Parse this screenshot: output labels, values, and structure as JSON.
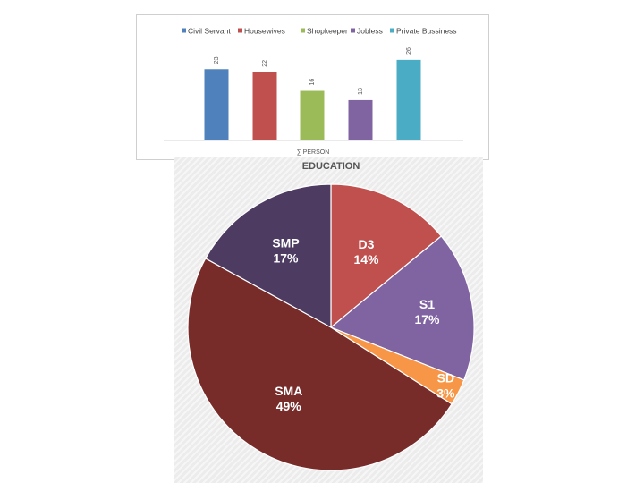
{
  "chart_data": [
    {
      "type": "bar",
      "categories": [
        "Civil Servant",
        "Housewives",
        "Shopkeeper",
        "Jobless",
        "Private Bussiness"
      ],
      "series": [
        {
          "name": "Civil Servant",
          "value": 23,
          "color": "#4f81bd"
        },
        {
          "name": "Housewives",
          "value": 22,
          "color": "#c0504d"
        },
        {
          "name": "Shopkeeper",
          "value": 16,
          "color": "#9bbb59"
        },
        {
          "name": "Jobless",
          "value": 13,
          "color": "#8064a2"
        },
        {
          "name": "Private Bussiness",
          "value": 26,
          "color": "#4bacc6"
        }
      ],
      "xlabel": "∑ PERSON",
      "ylim": [
        0,
        30
      ],
      "grid": false,
      "legend_position": "top"
    },
    {
      "type": "pie",
      "title": "EDUCATION",
      "slices": [
        {
          "label": "D3",
          "percent": 14,
          "percent_label": "14%",
          "color": "#c0504d"
        },
        {
          "label": "S1",
          "percent": 17,
          "percent_label": "17%",
          "color": "#8064a2"
        },
        {
          "label": "SD",
          "percent": 3,
          "percent_label": "3%",
          "color": "#f79646"
        },
        {
          "label": "SMA",
          "percent": 49,
          "percent_label": "49%",
          "color": "#772c2a"
        },
        {
          "label": "SMP",
          "percent": 17,
          "percent_label": "17%",
          "color": "#4d3b62"
        }
      ]
    }
  ]
}
